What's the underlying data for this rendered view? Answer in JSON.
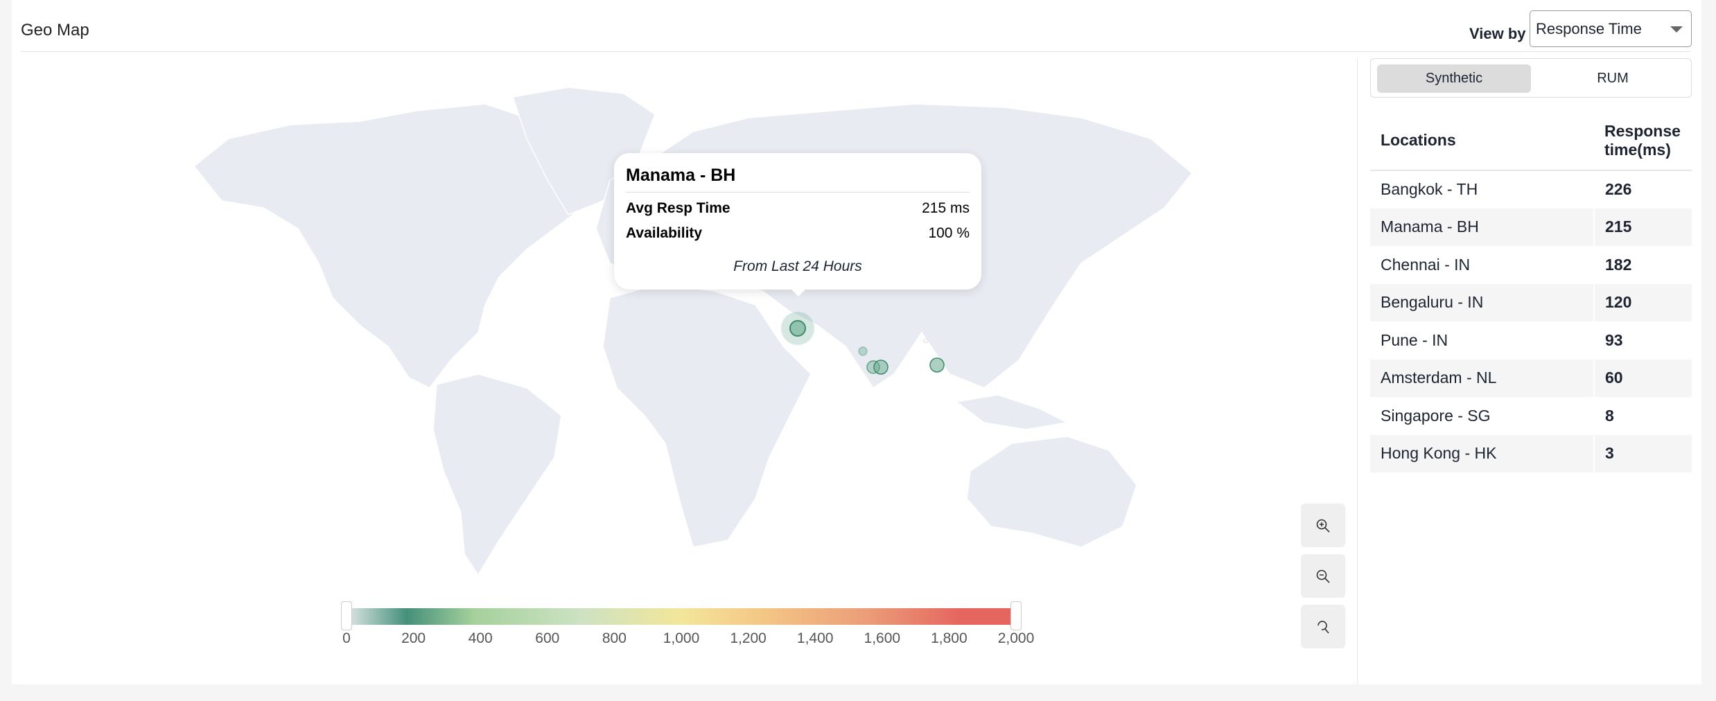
{
  "header": {
    "title": "Geo Map",
    "view_by_label": "View by",
    "view_by_value": "Response Time"
  },
  "toggle": {
    "options": [
      "Synthetic",
      "RUM"
    ],
    "selected": "Synthetic"
  },
  "table": {
    "headers": [
      "Locations",
      "Response time(ms)"
    ],
    "rows": [
      {
        "location": "Bangkok - TH",
        "value": "226"
      },
      {
        "location": "Manama - BH",
        "value": "215"
      },
      {
        "location": "Chennai - IN",
        "value": "182"
      },
      {
        "location": "Bengaluru - IN",
        "value": "120"
      },
      {
        "location": "Pune - IN",
        "value": "93"
      },
      {
        "location": "Amsterdam - NL",
        "value": "60"
      },
      {
        "location": "Singapore - SG",
        "value": "8"
      },
      {
        "location": "Hong Kong - HK",
        "value": "3"
      }
    ]
  },
  "tooltip": {
    "title": "Manama - BH",
    "rows": [
      {
        "label": "Avg Resp Time",
        "value": "215 ms"
      },
      {
        "label": "Availability",
        "value": "100 %"
      }
    ],
    "footer": "From Last 24 Hours"
  },
  "legend": {
    "min": 0,
    "max": 2000,
    "ticks": [
      "0",
      "200",
      "400",
      "600",
      "800",
      "1,000",
      "1,200",
      "1,400",
      "1,600",
      "1,800",
      "2,000"
    ]
  },
  "zoom_controls": [
    "zoom-in-icon",
    "zoom-out-icon",
    "reset-zoom-icon"
  ],
  "colors": {
    "land": "#e8ecf2",
    "marker": "#5aa486"
  }
}
